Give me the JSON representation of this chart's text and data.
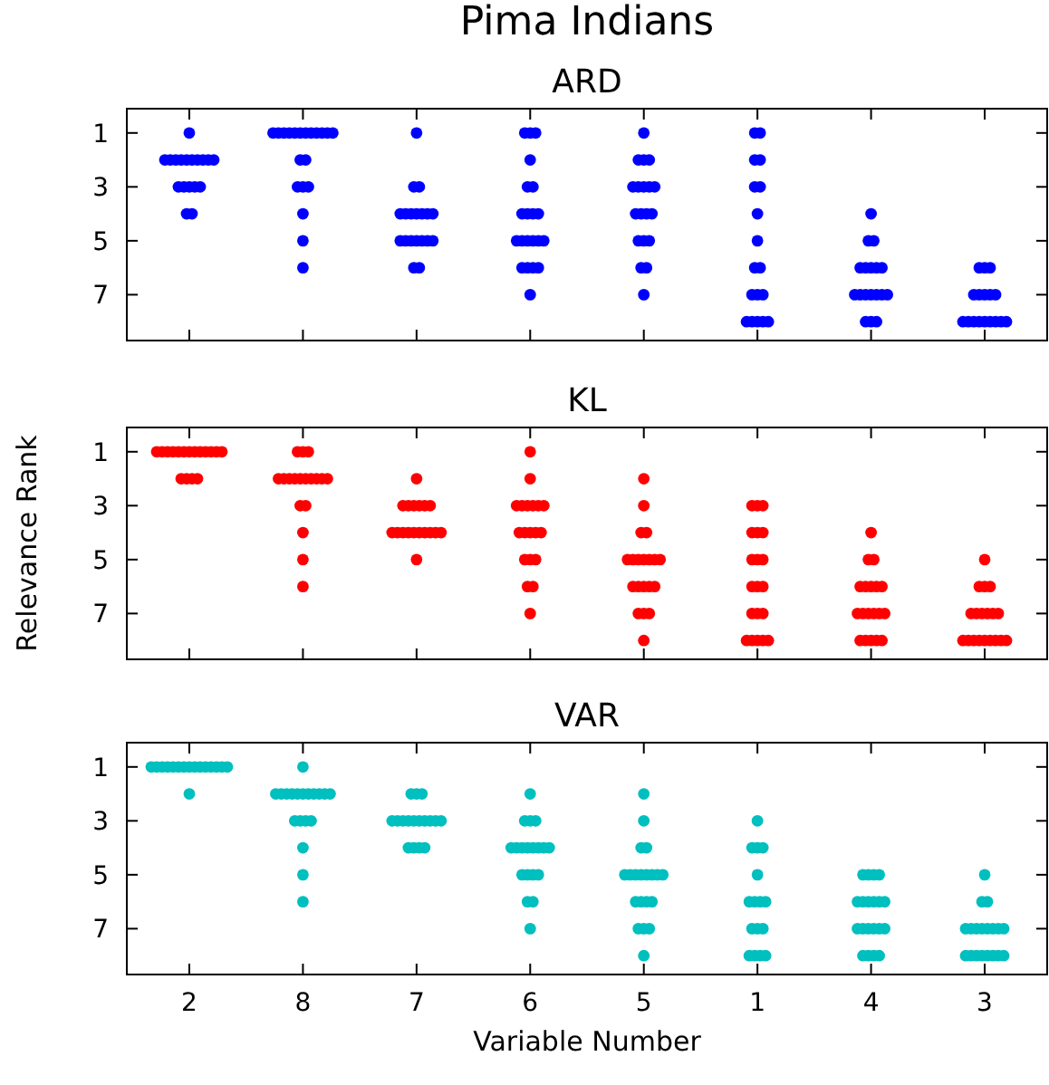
{
  "chart_data": [
    {
      "type": "scatter",
      "title": "Pima Indians",
      "subtitle": "ARD",
      "categories": [
        "2",
        "8",
        "7",
        "6",
        "5",
        "1",
        "4",
        "3"
      ],
      "ylim": [
        8.7,
        0.1
      ],
      "yticks": [
        1,
        3,
        5,
        7
      ],
      "tick_labels": "y",
      "grid": false,
      "marker": "circle",
      "series": [
        {
          "color": "#0000ff",
          "x": [
            "2",
            "2",
            "2",
            "2",
            "2",
            "2",
            "2",
            "2",
            "2",
            "2",
            "2",
            "2",
            "2",
            "2",
            "2",
            "2",
            "2",
            "2"
          ],
          "values": [
            1,
            2,
            2,
            2,
            2,
            2,
            2,
            2,
            2,
            2,
            2,
            3,
            3,
            3,
            3,
            3,
            4,
            4
          ]
        },
        {
          "color": "#0000ff",
          "x": [
            "8",
            "8",
            "8",
            "8",
            "8",
            "8",
            "8",
            "8",
            "8",
            "8",
            "8",
            "8",
            "8",
            "8",
            "8",
            "8",
            "8",
            "8",
            "8",
            "8"
          ],
          "values": [
            1,
            1,
            1,
            1,
            1,
            1,
            1,
            1,
            1,
            1,
            1,
            1,
            2,
            2,
            3,
            3,
            3,
            4,
            5,
            6
          ]
        },
        {
          "color": "#0000ff",
          "x": [
            "7",
            "7",
            "7",
            "7",
            "7",
            "7",
            "7",
            "7",
            "7",
            "7",
            "7",
            "7",
            "7",
            "7",
            "7",
            "7",
            "7",
            "7",
            "7"
          ],
          "values": [
            1,
            3,
            3,
            4,
            4,
            4,
            4,
            4,
            4,
            4,
            5,
            5,
            5,
            5,
            5,
            5,
            5,
            6,
            6
          ]
        },
        {
          "color": "#0000ff",
          "x": [
            "6",
            "6",
            "6",
            "6",
            "6",
            "6",
            "6",
            "6",
            "6",
            "6",
            "6",
            "6",
            "6",
            "6",
            "6",
            "6",
            "6",
            "6",
            "6",
            "6",
            "6"
          ],
          "values": [
            1,
            1,
            1,
            2,
            3,
            3,
            4,
            4,
            4,
            4,
            5,
            5,
            5,
            5,
            5,
            5,
            6,
            6,
            6,
            6,
            7
          ]
        },
        {
          "color": "#0000ff",
          "x": [
            "5",
            "5",
            "5",
            "5",
            "5",
            "5",
            "5",
            "5",
            "5",
            "5",
            "5",
            "5",
            "5",
            "5",
            "5",
            "5",
            "5",
            "5",
            "5"
          ],
          "values": [
            1,
            2,
            2,
            2,
            3,
            3,
            3,
            3,
            3,
            4,
            4,
            4,
            4,
            5,
            5,
            5,
            6,
            6,
            7
          ]
        },
        {
          "color": "#0000ff",
          "x": [
            "1",
            "1",
            "1",
            "1",
            "1",
            "1",
            "1",
            "1",
            "1",
            "1",
            "1",
            "1",
            "1",
            "1",
            "1",
            "1",
            "1",
            "1"
          ],
          "values": [
            1,
            1,
            2,
            2,
            3,
            3,
            4,
            5,
            6,
            6,
            7,
            7,
            7,
            8,
            8,
            8,
            8,
            8
          ]
        },
        {
          "color": "#0000ff",
          "x": [
            "4",
            "4",
            "4",
            "4",
            "4",
            "4",
            "4",
            "4",
            "4",
            "4",
            "4",
            "4",
            "4",
            "4",
            "4",
            "4",
            "4",
            "4"
          ],
          "values": [
            4,
            5,
            5,
            6,
            6,
            6,
            6,
            6,
            7,
            7,
            7,
            7,
            7,
            7,
            7,
            8,
            8,
            8
          ]
        },
        {
          "color": "#0000ff",
          "x": [
            "3",
            "3",
            "3",
            "3",
            "3",
            "3",
            "3",
            "3",
            "3",
            "3",
            "3",
            "3",
            "3",
            "3",
            "3",
            "3",
            "3"
          ],
          "values": [
            6,
            6,
            6,
            7,
            7,
            7,
            7,
            7,
            8,
            8,
            8,
            8,
            8,
            8,
            8,
            8,
            8
          ]
        }
      ]
    },
    {
      "type": "scatter",
      "title": "KL",
      "ylabel": "Relevance Rank",
      "categories": [
        "2",
        "8",
        "7",
        "6",
        "5",
        "1",
        "4",
        "3"
      ],
      "ylim": [
        8.7,
        0.1
      ],
      "yticks": [
        1,
        3,
        5,
        7
      ],
      "tick_labels": "y",
      "grid": false,
      "marker": "circle",
      "series": [
        {
          "color": "#ff0000",
          "x": [
            "2",
            "2",
            "2",
            "2",
            "2",
            "2",
            "2",
            "2",
            "2",
            "2",
            "2",
            "2",
            "2",
            "2",
            "2",
            "2",
            "2"
          ],
          "values": [
            1,
            1,
            1,
            1,
            1,
            1,
            1,
            1,
            1,
            1,
            1,
            1,
            1,
            2,
            2,
            2,
            2
          ]
        },
        {
          "color": "#ff0000",
          "x": [
            "8",
            "8",
            "8",
            "8",
            "8",
            "8",
            "8",
            "8",
            "8",
            "8",
            "8",
            "8",
            "8",
            "8",
            "8",
            "8",
            "8",
            "8"
          ],
          "values": [
            1,
            1,
            1,
            2,
            2,
            2,
            2,
            2,
            2,
            2,
            2,
            2,
            2,
            3,
            3,
            4,
            5,
            6
          ]
        },
        {
          "color": "#ff0000",
          "x": [
            "7",
            "7",
            "7",
            "7",
            "7",
            "7",
            "7",
            "7",
            "7",
            "7",
            "7",
            "7",
            "7",
            "7",
            "7",
            "7",
            "7",
            "7"
          ],
          "values": [
            2,
            3,
            3,
            3,
            3,
            3,
            3,
            4,
            4,
            4,
            4,
            4,
            4,
            4,
            4,
            4,
            4,
            5
          ]
        },
        {
          "color": "#ff0000",
          "x": [
            "6",
            "6",
            "6",
            "6",
            "6",
            "6",
            "6",
            "6",
            "6",
            "6",
            "6",
            "6",
            "6",
            "6",
            "6",
            "6",
            "6",
            "6",
            "6"
          ],
          "values": [
            1,
            2,
            3,
            3,
            3,
            3,
            3,
            3,
            4,
            4,
            4,
            4,
            4,
            5,
            5,
            5,
            6,
            6,
            7
          ]
        },
        {
          "color": "#ff0000",
          "x": [
            "5",
            "5",
            "5",
            "5",
            "5",
            "5",
            "5",
            "5",
            "5",
            "5",
            "5",
            "5",
            "5",
            "5",
            "5",
            "5",
            "5",
            "5",
            "5",
            "5"
          ],
          "values": [
            2,
            3,
            4,
            4,
            5,
            5,
            5,
            5,
            5,
            5,
            5,
            6,
            6,
            6,
            6,
            6,
            7,
            7,
            7,
            8
          ]
        },
        {
          "color": "#ff0000",
          "x": [
            "1",
            "1",
            "1",
            "1",
            "1",
            "1",
            "1",
            "1",
            "1",
            "1",
            "1",
            "1",
            "1",
            "1",
            "1",
            "1",
            "1",
            "1",
            "1",
            "1"
          ],
          "values": [
            3,
            3,
            3,
            4,
            4,
            4,
            5,
            5,
            5,
            6,
            6,
            6,
            7,
            7,
            7,
            8,
            8,
            8,
            8,
            8
          ]
        },
        {
          "color": "#ff0000",
          "x": [
            "4",
            "4",
            "4",
            "4",
            "4",
            "4",
            "4",
            "4",
            "4",
            "4",
            "4",
            "4",
            "4",
            "4",
            "4",
            "4",
            "4",
            "4",
            "4"
          ],
          "values": [
            4,
            5,
            5,
            6,
            6,
            6,
            6,
            6,
            7,
            7,
            7,
            7,
            7,
            7,
            8,
            8,
            8,
            8,
            8
          ]
        },
        {
          "color": "#ff0000",
          "x": [
            "3",
            "3",
            "3",
            "3",
            "3",
            "3",
            "3",
            "3",
            "3",
            "3",
            "3",
            "3",
            "3",
            "3",
            "3",
            "3",
            "3",
            "3",
            "3"
          ],
          "values": [
            5,
            6,
            6,
            6,
            7,
            7,
            7,
            7,
            7,
            7,
            8,
            8,
            8,
            8,
            8,
            8,
            8,
            8,
            8
          ]
        }
      ]
    },
    {
      "type": "scatter",
      "title": "VAR",
      "xlabel": "Variable Number",
      "categories": [
        "2",
        "8",
        "7",
        "6",
        "5",
        "1",
        "4",
        "3"
      ],
      "ylim": [
        8.7,
        0.1
      ],
      "yticks": [
        1,
        3,
        5,
        7
      ],
      "grid": false,
      "marker": "circle",
      "series": [
        {
          "color": "#00bfbf",
          "x": [
            "2",
            "2",
            "2",
            "2",
            "2",
            "2",
            "2",
            "2",
            "2",
            "2",
            "2",
            "2",
            "2",
            "2",
            "2",
            "2"
          ],
          "values": [
            1,
            1,
            1,
            1,
            1,
            1,
            1,
            1,
            1,
            1,
            1,
            1,
            1,
            1,
            1,
            2
          ]
        },
        {
          "color": "#00bfbf",
          "x": [
            "8",
            "8",
            "8",
            "8",
            "8",
            "8",
            "8",
            "8",
            "8",
            "8",
            "8",
            "8",
            "8",
            "8",
            "8",
            "8",
            "8",
            "8",
            "8"
          ],
          "values": [
            1,
            2,
            2,
            2,
            2,
            2,
            2,
            2,
            2,
            2,
            2,
            2,
            3,
            3,
            3,
            3,
            4,
            5,
            6
          ]
        },
        {
          "color": "#00bfbf",
          "x": [
            "7",
            "7",
            "7",
            "7",
            "7",
            "7",
            "7",
            "7",
            "7",
            "7",
            "7",
            "7",
            "7",
            "7",
            "7",
            "7",
            "7"
          ],
          "values": [
            2,
            2,
            2,
            3,
            3,
            3,
            3,
            3,
            3,
            3,
            3,
            3,
            3,
            4,
            4,
            4,
            4
          ]
        },
        {
          "color": "#00bfbf",
          "x": [
            "6",
            "6",
            "6",
            "6",
            "6",
            "6",
            "6",
            "6",
            "6",
            "6",
            "6",
            "6",
            "6",
            "6",
            "6",
            "6",
            "6",
            "6",
            "6"
          ],
          "values": [
            2,
            3,
            3,
            3,
            4,
            4,
            4,
            4,
            4,
            4,
            4,
            4,
            5,
            5,
            5,
            5,
            6,
            6,
            7
          ]
        },
        {
          "color": "#00bfbf",
          "x": [
            "5",
            "5",
            "5",
            "5",
            "5",
            "5",
            "5",
            "5",
            "5",
            "5",
            "5",
            "5",
            "5",
            "5",
            "5",
            "5",
            "5",
            "5",
            "5",
            "5"
          ],
          "values": [
            2,
            3,
            4,
            4,
            5,
            5,
            5,
            5,
            5,
            5,
            5,
            5,
            6,
            6,
            6,
            6,
            7,
            7,
            7,
            8
          ]
        },
        {
          "color": "#00bfbf",
          "x": [
            "1",
            "1",
            "1",
            "1",
            "1",
            "1",
            "1",
            "1",
            "1",
            "1",
            "1",
            "1",
            "1",
            "1",
            "1",
            "1"
          ],
          "values": [
            3,
            4,
            4,
            4,
            5,
            6,
            6,
            6,
            6,
            7,
            7,
            7,
            8,
            8,
            8,
            8
          ]
        },
        {
          "color": "#00bfbf",
          "x": [
            "4",
            "4",
            "4",
            "4",
            "4",
            "4",
            "4",
            "4",
            "4",
            "4",
            "4",
            "4",
            "4",
            "4",
            "4",
            "4",
            "4",
            "4",
            "4",
            "4"
          ],
          "values": [
            5,
            5,
            5,
            5,
            6,
            6,
            6,
            6,
            6,
            6,
            7,
            7,
            7,
            7,
            7,
            7,
            8,
            8,
            8,
            8
          ]
        },
        {
          "color": "#00bfbf",
          "x": [
            "3",
            "3",
            "3",
            "3",
            "3",
            "3",
            "3",
            "3",
            "3",
            "3",
            "3",
            "3",
            "3",
            "3",
            "3",
            "3",
            "3",
            "3",
            "3"
          ],
          "values": [
            5,
            6,
            6,
            7,
            7,
            7,
            7,
            7,
            7,
            7,
            7,
            8,
            8,
            8,
            8,
            8,
            8,
            8,
            8
          ]
        }
      ]
    }
  ]
}
